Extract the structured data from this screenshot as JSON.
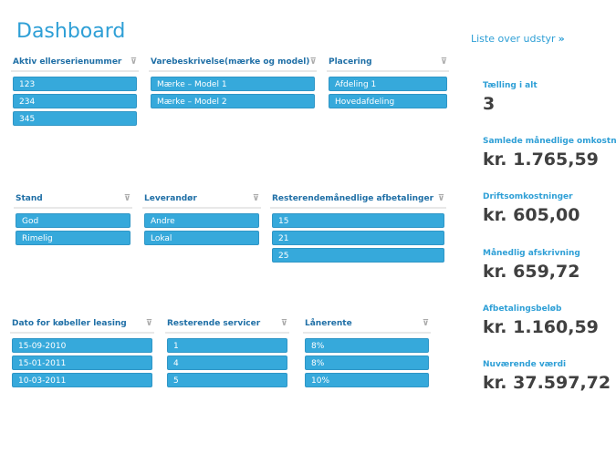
{
  "header": {
    "title": "Dashboard",
    "link": "Liste over udstyr",
    "link_icon": "double-chevron-right"
  },
  "slicers": [
    {
      "title": "Aktiv ellerserienummer",
      "items": [
        "123",
        "234",
        "345"
      ]
    },
    {
      "title": "Varebeskrivelse(mærke og model)",
      "items": [
        "Mærke – Model 1",
        "Mærke – Model 2"
      ]
    },
    {
      "title": "Placering",
      "items": [
        "Afdeling 1",
        "Hovedafdeling"
      ]
    },
    {
      "title": "Stand",
      "items": [
        "God",
        "Rimelig"
      ]
    },
    {
      "title": "Leverandør",
      "items": [
        "Andre",
        "Lokal"
      ]
    },
    {
      "title": "Resterendemånedlige afbetalinger",
      "items": [
        "15",
        "21",
        "25"
      ]
    },
    {
      "title": "Dato for købeller leasing",
      "items": [
        "15-09-2010",
        "15-01-2011",
        "10-03-2011"
      ]
    },
    {
      "title": "Resterende servicer",
      "items": [
        "1",
        "4",
        "5"
      ]
    },
    {
      "title": "Lånerente",
      "items": [
        "8%",
        "8%",
        "10%"
      ]
    }
  ],
  "kpis": [
    {
      "label": "Tælling i alt",
      "value": "3"
    },
    {
      "label": "Samlede månedlige omkostnin",
      "value": "kr. 1.765,59"
    },
    {
      "label": "Driftsomkostninger",
      "value": "kr. 605,00"
    },
    {
      "label": "Månedlig afskrivning",
      "value": "kr. 659,72"
    },
    {
      "label": "Afbetalingsbeløb",
      "value": "kr. 1.160,59"
    },
    {
      "label": "Nuværende værdi",
      "value": "kr. 37.597,72"
    }
  ],
  "colors": {
    "accent": "#2e9fd6",
    "item": "#36a9db"
  }
}
